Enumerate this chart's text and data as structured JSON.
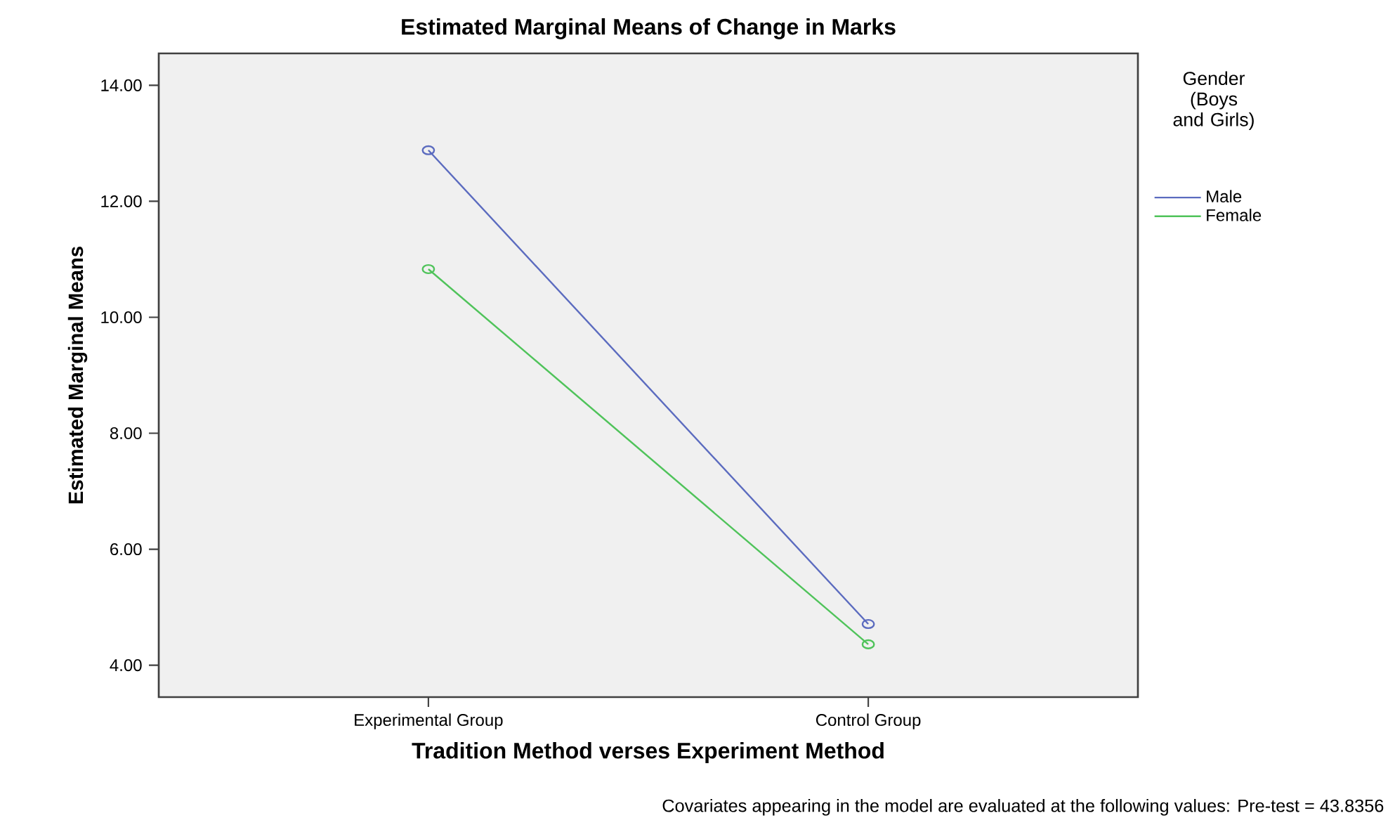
{
  "chart_data": {
    "type": "line",
    "title": "Estimated Marginal Means of Change in Marks",
    "xlabel": "Tradition Method verses Experiment Method",
    "ylabel": "Estimated Marginal Means",
    "legend_title": "Gender (Boys and Girls)",
    "annotations": [
      "Covariates appearing in the model are evaluated at the following values: Pre-test = 43.8356"
    ],
    "categories": [
      "Experimental Group",
      "Control Group"
    ],
    "series": [
      {
        "name": "Male",
        "color": "#5b6bbf",
        "values": [
          12.88,
          4.71
        ]
      },
      {
        "name": "Female",
        "color": "#4fc35a",
        "values": [
          10.83,
          4.36
        ]
      }
    ],
    "ylim": [
      3.45,
      14.55
    ],
    "yticks": [
      {
        "value": 4,
        "label": "4.00"
      },
      {
        "value": 6,
        "label": "6.00"
      },
      {
        "value": 8,
        "label": "8.00"
      },
      {
        "value": 10,
        "label": "10.00"
      },
      {
        "value": 12,
        "label": "12.00"
      },
      {
        "value": 14,
        "label": "14.00"
      }
    ],
    "grid": false,
    "legend": "right",
    "marker": "circle",
    "line_style": "solid"
  }
}
